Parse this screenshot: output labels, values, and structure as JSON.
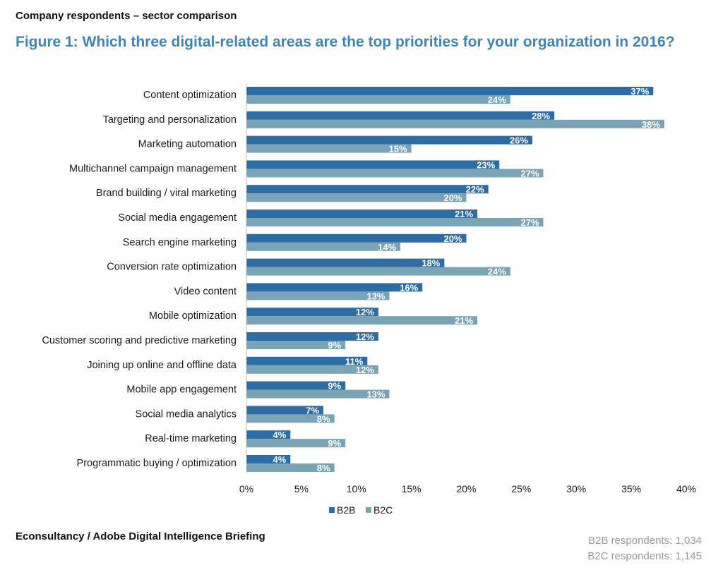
{
  "header": "Company respondents – sector comparison",
  "figure_title": "Figure 1: Which three digital-related areas are the top priorities for your organization in 2016?",
  "source": "Econsultancy / Adobe Digital Intelligence Briefing",
  "respondents": {
    "b2b": "B2B respondents: 1,034",
    "b2c": "B2C respondents: 1,145"
  },
  "colors": {
    "b2b": "#2e6ca4",
    "b2c": "#7aa3b6"
  },
  "chart_data": {
    "type": "bar",
    "orientation": "horizontal",
    "categories": [
      "Content optimization",
      "Targeting and personalization",
      "Marketing automation",
      "Multichannel campaign management",
      "Brand building / viral marketing",
      "Social media engagement",
      "Search engine marketing",
      "Conversion rate optimization",
      "Video content",
      "Mobile optimization",
      "Customer scoring and predictive marketing",
      "Joining up online and offline data",
      "Mobile app engagement",
      "Social media analytics",
      "Real-time marketing",
      "Programmatic buying / optimization"
    ],
    "series": [
      {
        "name": "B2B",
        "values": [
          37,
          28,
          26,
          23,
          22,
          21,
          20,
          18,
          16,
          12,
          12,
          11,
          9,
          7,
          4,
          4
        ]
      },
      {
        "name": "B2C",
        "values": [
          24,
          38,
          15,
          27,
          20,
          27,
          14,
          24,
          13,
          21,
          9,
          12,
          13,
          8,
          9,
          8
        ]
      }
    ],
    "xlim": [
      0,
      40
    ],
    "xticks": [
      0,
      5,
      10,
      15,
      20,
      25,
      30,
      35,
      40
    ],
    "tick_suffix": "%",
    "legend_position": "bottom",
    "grid": false
  }
}
